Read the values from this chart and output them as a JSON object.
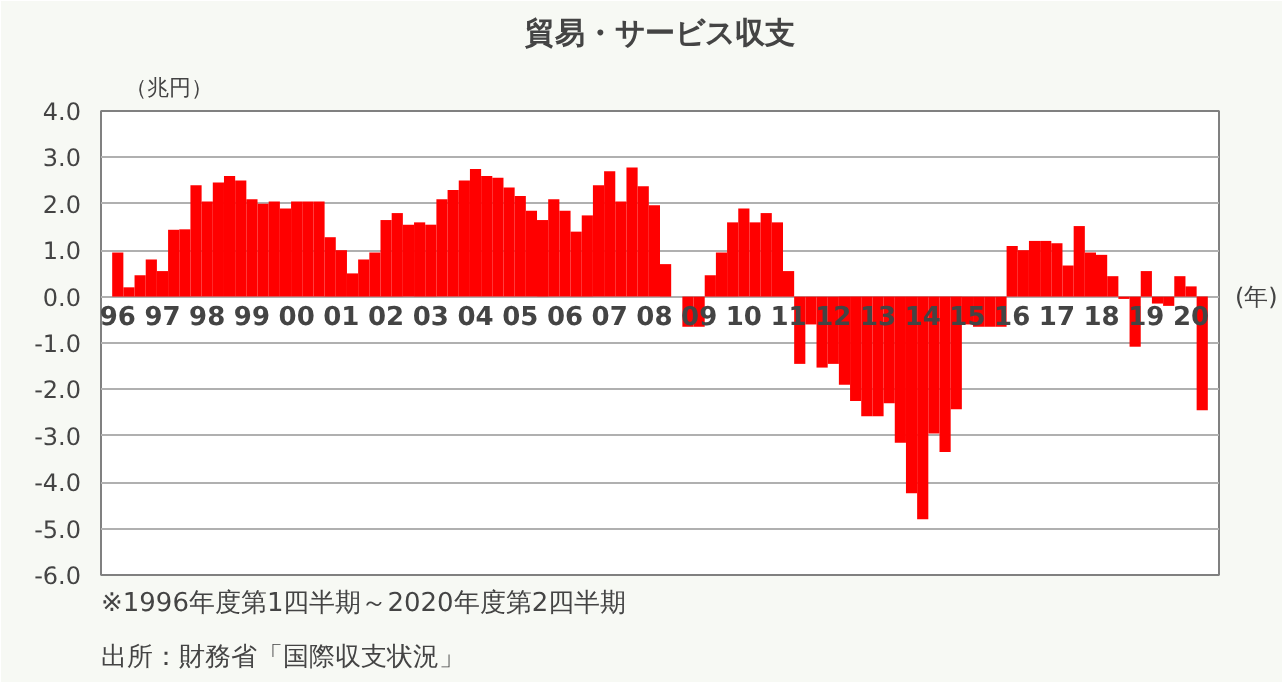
{
  "chart_data": {
    "type": "bar",
    "title": "貿易・サービス収支",
    "ylabel": "（兆円）",
    "xlabel": "(年)",
    "categories": [
      "96",
      null,
      null,
      null,
      "97",
      null,
      null,
      null,
      "98",
      null,
      null,
      null,
      "99",
      null,
      null,
      null,
      "00",
      null,
      null,
      null,
      "01",
      null,
      null,
      null,
      "02",
      null,
      null,
      null,
      "03",
      null,
      null,
      null,
      "04",
      null,
      null,
      null,
      "05",
      null,
      null,
      null,
      "06",
      null,
      null,
      null,
      "07",
      null,
      null,
      null,
      "08",
      null,
      null,
      null,
      "09",
      null,
      null,
      null,
      "10",
      null,
      null,
      null,
      "11",
      null,
      null,
      null,
      "12",
      null,
      null,
      null,
      "13",
      null,
      null,
      null,
      "14",
      null,
      null,
      null,
      "15",
      null,
      null,
      null,
      "16",
      null,
      null,
      null,
      "17",
      null,
      null,
      null,
      "18",
      null,
      null,
      null,
      "19",
      null,
      null,
      null,
      "20",
      null
    ],
    "values": [
      0.95,
      0.2,
      0.46,
      0.8,
      0.55,
      1.44,
      1.45,
      2.4,
      2.05,
      2.46,
      2.6,
      2.5,
      2.1,
      2.0,
      2.05,
      1.9,
      2.05,
      2.05,
      2.05,
      1.28,
      1.0,
      0.5,
      0.8,
      0.95,
      1.65,
      1.8,
      1.55,
      1.6,
      1.55,
      2.1,
      2.3,
      2.5,
      2.75,
      2.6,
      2.56,
      2.35,
      2.17,
      1.85,
      1.65,
      2.1,
      1.85,
      1.4,
      1.75,
      2.4,
      2.7,
      2.05,
      2.78,
      2.38,
      1.97,
      0.7,
      0.0,
      -0.65,
      -0.65,
      0.46,
      0.95,
      1.6,
      1.9,
      1.6,
      1.8,
      1.6,
      0.55,
      -1.45,
      -0.6,
      -1.53,
      -1.45,
      -1.9,
      -2.25,
      -2.58,
      -2.58,
      -2.3,
      -3.15,
      -4.24,
      -4.8,
      -2.95,
      -3.35,
      -2.43,
      -0.6,
      -0.65,
      -0.65,
      -0.65,
      1.09,
      1.0,
      1.2,
      1.2,
      1.15,
      0.67,
      1.52,
      0.95,
      0.9,
      0.44,
      -0.05,
      -1.08,
      0.55,
      -0.15,
      -0.2,
      0.44,
      0.22,
      -2.45
    ],
    "color": "#ff0000",
    "ylim": [
      -6,
      4
    ],
    "yticks": [
      {
        "value": -6,
        "label": "-6.0"
      },
      {
        "value": -5,
        "label": "-5.0"
      },
      {
        "value": -4,
        "label": "-4.0"
      },
      {
        "value": -3,
        "label": "-3.0"
      },
      {
        "value": -2,
        "label": "-2.0"
      },
      {
        "value": -1,
        "label": "-1.0"
      },
      {
        "value": 0,
        "label": "0.0"
      },
      {
        "value": 1,
        "label": "1.0"
      },
      {
        "value": 2,
        "label": "2.0"
      },
      {
        "value": 3,
        "label": "3.0"
      },
      {
        "value": 4,
        "label": "4.0"
      }
    ],
    "grid": "y",
    "annotations": [
      "※1996年度第1四半期～2020年度第2四半期",
      "出所：財務省「国際収支状況」"
    ]
  }
}
